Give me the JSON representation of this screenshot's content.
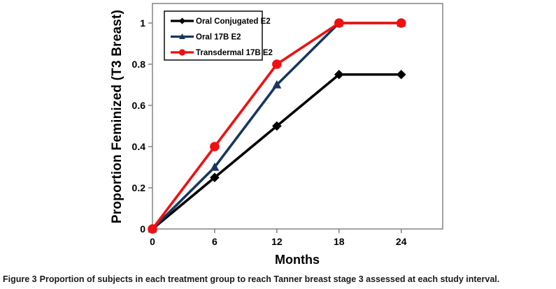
{
  "chart_data": {
    "type": "line",
    "x": [
      0,
      6,
      12,
      18,
      24
    ],
    "series": [
      {
        "name": "Oral Conjugated E2",
        "values": [
          0,
          0.25,
          0.5,
          0.75,
          0.75
        ],
        "color": "#000000",
        "marker": "diamond"
      },
      {
        "name": "Oral 17B E2",
        "values": [
          0,
          0.3,
          0.7,
          1.0,
          1.0
        ],
        "color": "#17375E",
        "marker": "triangle"
      },
      {
        "name": "Transdermal 17B E2",
        "values": [
          0,
          0.4,
          0.8,
          1.0,
          1.0
        ],
        "color": "#EE1111",
        "marker": "circle"
      }
    ],
    "xlabel": "Months",
    "ylabel": "Proportion Feminized (T3 Breast)",
    "xticks": [
      0,
      6,
      12,
      18,
      24
    ],
    "xtick_labels": [
      "0",
      "6",
      "12",
      "18",
      "24"
    ],
    "yticks": [
      0,
      0.2,
      0.4,
      0.6,
      0.8,
      1
    ],
    "ytick_labels": [
      "0",
      "0.2",
      "0.4",
      "0.6",
      "0.8",
      "1"
    ],
    "xlim": [
      0,
      28
    ],
    "ylim": [
      0,
      1.1
    ],
    "grid": false,
    "legend_position": "top-left-inside",
    "axis_color": "#7a7a7a",
    "text_color": "#000000"
  },
  "caption": {
    "prefix": "Figure 3",
    "text": "Proportion of subjects in each treatment group to reach Tanner breast stage 3 assessed at each study interval."
  }
}
